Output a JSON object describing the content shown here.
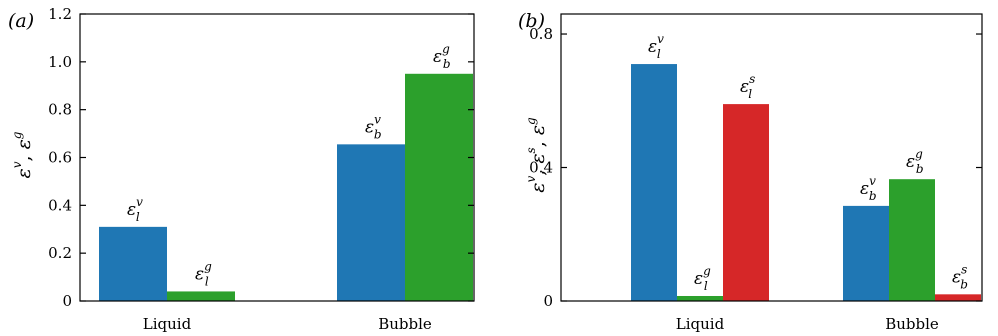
{
  "chart_data": [
    {
      "type": "bar",
      "panel_label": "(a)",
      "ylabel": {
        "main1": "ε",
        "sup1": "v",
        "sep": ", ",
        "main2": "ε",
        "sup2": "g"
      },
      "ylim": [
        0,
        1.2
      ],
      "yticks": [
        {
          "value": 0,
          "label": "0"
        },
        {
          "value": 0.2,
          "label": "0.2"
        },
        {
          "value": 0.4,
          "label": "0.4"
        },
        {
          "value": 0.6,
          "label": "0.6"
        },
        {
          "value": 0.8,
          "label": "0.8"
        },
        {
          "value": 1.0,
          "label": "1.0"
        },
        {
          "value": 1.2,
          "label": "1.2"
        }
      ],
      "categories": [
        "Liquid",
        "Bubble"
      ],
      "series": [
        {
          "color": "#1f77b4",
          "values": [
            0.31,
            0.655
          ],
          "labels": [
            {
              "main": "ε",
              "sup": "v",
              "sub": "l"
            },
            {
              "main": "ε",
              "sup": "v",
              "sub": "b"
            }
          ]
        },
        {
          "color": "#2ca02c",
          "values": [
            0.04,
            0.95
          ],
          "labels": [
            {
              "main": "ε",
              "sup": "g",
              "sub": "l"
            },
            {
              "main": "ε",
              "sup": "g",
              "sub": "b"
            }
          ]
        }
      ]
    },
    {
      "type": "bar",
      "panel_label": "(b)",
      "ylabel": {
        "main1": "ε",
        "sup1": "v",
        "sep1": ", ",
        "main2": "ε",
        "sup2": "s",
        "sep2": ", ",
        "main3": "ε",
        "sup3": "g"
      },
      "ylim": [
        0,
        0.86
      ],
      "yticks": [
        {
          "value": 0,
          "label": "0"
        },
        {
          "value": 0.4,
          "label": "0.4"
        },
        {
          "value": 0.8,
          "label": "0.8"
        }
      ],
      "categories": [
        "Liquid",
        "Bubble"
      ],
      "series": [
        {
          "color": "#1f77b4",
          "values": [
            0.71,
            0.285
          ],
          "labels": [
            {
              "main": "ε",
              "sup": "v",
              "sub": "l"
            },
            {
              "main": "ε",
              "sup": "v",
              "sub": "b"
            }
          ]
        },
        {
          "color": "#2ca02c",
          "values": [
            0.015,
            0.365
          ],
          "labels": [
            {
              "main": "ε",
              "sup": "g",
              "sub": "l"
            },
            {
              "main": "ε",
              "sup": "g",
              "sub": "b"
            }
          ]
        },
        {
          "color": "#d62728",
          "values": [
            0.59,
            0.02
          ],
          "labels": [
            {
              "main": "ε",
              "sup": "s",
              "sub": "l"
            },
            {
              "main": "ε",
              "sup": "s",
              "sub": "b"
            }
          ]
        }
      ]
    }
  ]
}
